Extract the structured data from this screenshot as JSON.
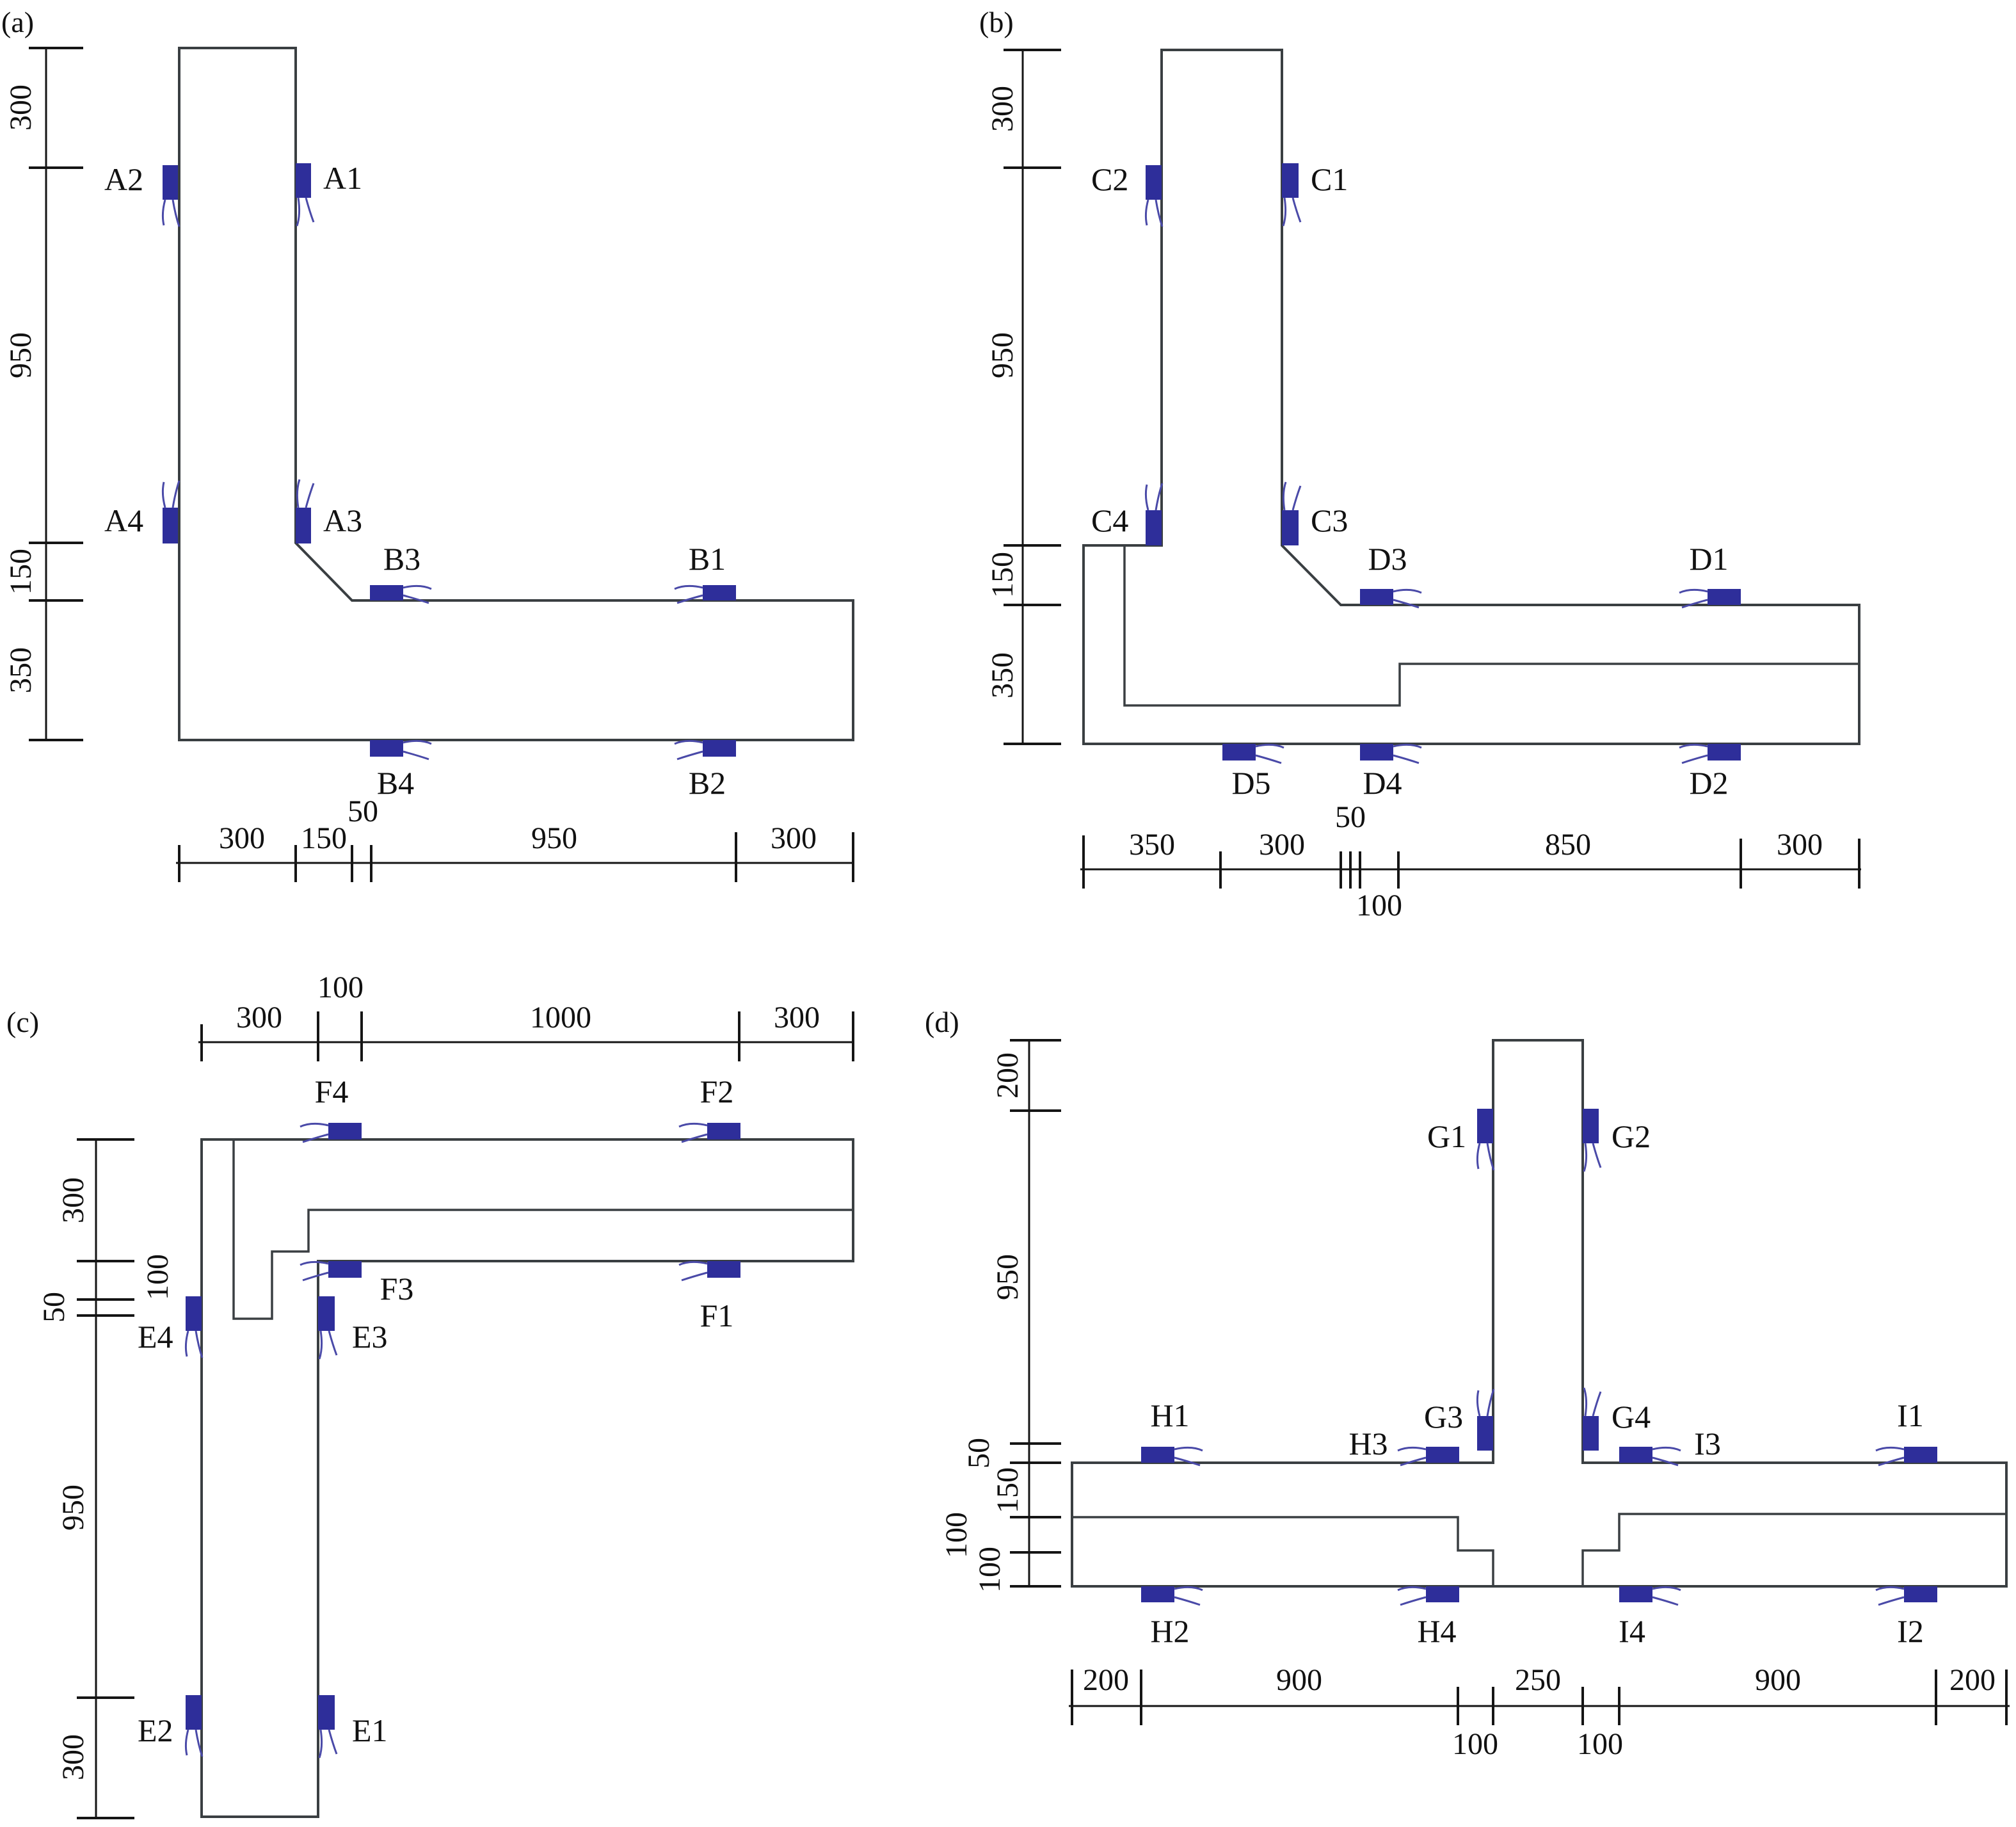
{
  "accent_color": "#2e2e9a",
  "panels": {
    "a": {
      "tag": "(a)",
      "gauges": [
        "A1",
        "A2",
        "A3",
        "A4",
        "B1",
        "B2",
        "B3",
        "B4"
      ],
      "dims_vertical": [
        "300",
        "950",
        "150",
        "350"
      ],
      "dims_horizontal": [
        "300",
        "150",
        "50",
        "950",
        "300"
      ]
    },
    "b": {
      "tag": "(b)",
      "gauges": [
        "C1",
        "C2",
        "C3",
        "C4",
        "D1",
        "D2",
        "D3",
        "D4",
        "D5"
      ],
      "dims_vertical": [
        "300",
        "950",
        "150",
        "350"
      ],
      "dims_horizontal": [
        "350",
        "300",
        "50",
        "100",
        "850",
        "300"
      ]
    },
    "c": {
      "tag": "(c)",
      "gauges": [
        "E1",
        "E2",
        "E3",
        "E4",
        "F1",
        "F2",
        "F3",
        "F4"
      ],
      "dims_vertical": [
        "300",
        "100",
        "50",
        "950",
        "300"
      ],
      "dims_horizontal": [
        "300",
        "100",
        "1000",
        "300"
      ]
    },
    "d": {
      "tag": "(d)",
      "gauges": [
        "G1",
        "G2",
        "G3",
        "G4",
        "H1",
        "H2",
        "H3",
        "H4",
        "I1",
        "I2",
        "I3",
        "I4"
      ],
      "dims_vertical": [
        "200",
        "950",
        "50",
        "150",
        "100",
        "100"
      ],
      "dims_horizontal": [
        "200",
        "900",
        "100",
        "250",
        "100",
        "900",
        "200"
      ]
    }
  }
}
